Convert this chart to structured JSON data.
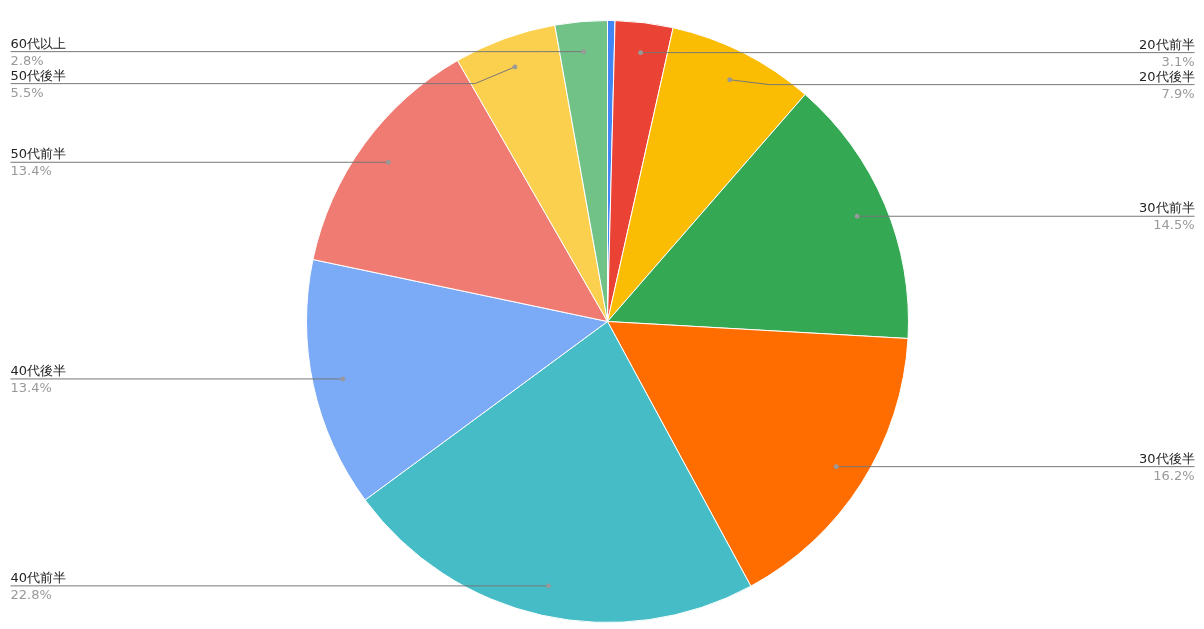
{
  "chart_data": {
    "type": "pie",
    "categories": [
      null,
      "20代前半",
      "20代後半",
      "30代前半",
      "30代後半",
      "40代前半",
      "40代後半",
      "50代前半",
      "50代後半",
      "60代以上"
    ],
    "values": [
      0.4,
      3.1,
      7.9,
      14.5,
      16.2,
      22.8,
      13.4,
      13.4,
      5.5,
      2.8
    ],
    "value_labels": [
      null,
      "3.1%",
      "7.9%",
      "14.5%",
      "16.2%",
      "22.8%",
      "13.4%",
      "13.4%",
      "5.5%",
      "2.8%"
    ],
    "colors": [
      "#4285f4",
      "#ea4335",
      "#fbbc04",
      "#34a853",
      "#ff6d01",
      "#46bdc6",
      "#7baaf7",
      "#f07b72",
      "#fcd04f",
      "#71c287"
    ]
  }
}
